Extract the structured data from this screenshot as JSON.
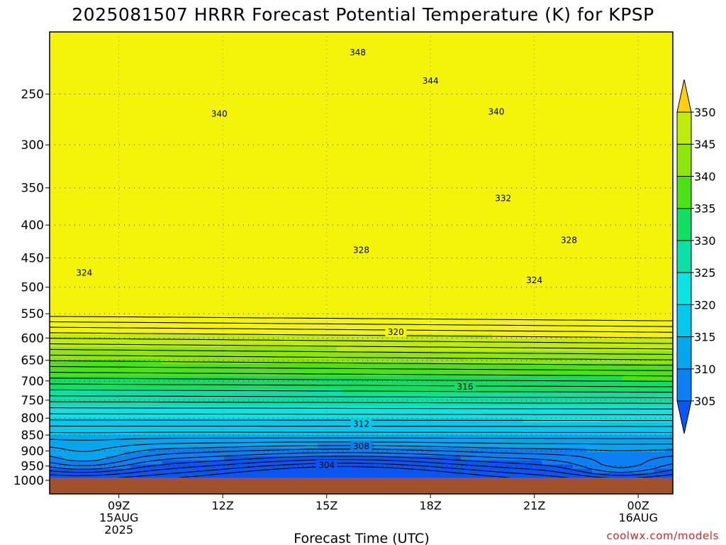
{
  "chart_data": {
    "type": "contour",
    "title": "2025081507 HRRR Forecast Potential Temperature (K) for KPSP",
    "xlabel": "Forecast Time (UTC)",
    "ylabel": "",
    "x_ticks": [
      {
        "hour": 9,
        "lines": [
          "09Z",
          "15AUG",
          "2025"
        ]
      },
      {
        "hour": 12,
        "lines": [
          "12Z"
        ]
      },
      {
        "hour": 15,
        "lines": [
          "15Z"
        ]
      },
      {
        "hour": 18,
        "lines": [
          "18Z"
        ]
      },
      {
        "hour": 21,
        "lines": [
          "21Z"
        ]
      },
      {
        "hour": 24,
        "lines": [
          "00Z",
          "16AUG"
        ]
      }
    ],
    "xlim_hours": [
      7,
      25
    ],
    "y_axis": "pressure (log scale, inverted)",
    "y_ticks": [
      250,
      300,
      350,
      400,
      450,
      500,
      550,
      600,
      650,
      700,
      750,
      800,
      850,
      900,
      950,
      1000
    ],
    "ylim": [
      1050,
      200
    ],
    "contour_interval": 2,
    "contour_labels": [
      {
        "value": "348",
        "hour": 15.9,
        "p": 215
      },
      {
        "value": "344",
        "hour": 18.0,
        "p": 238
      },
      {
        "value": "340",
        "hour": 11.9,
        "p": 268
      },
      {
        "value": "340",
        "hour": 19.9,
        "p": 266
      },
      {
        "value": "332",
        "hour": 20.1,
        "p": 363
      },
      {
        "value": "328",
        "hour": 16.0,
        "p": 437
      },
      {
        "value": "328",
        "hour": 22.0,
        "p": 422
      },
      {
        "value": "324",
        "hour": 8.0,
        "p": 474
      },
      {
        "value": "324",
        "hour": 21.0,
        "p": 487
      },
      {
        "value": "320",
        "hour": 17.0,
        "p": 587
      },
      {
        "value": "316",
        "hour": 19.0,
        "p": 714
      },
      {
        "value": "312",
        "hour": 16.0,
        "p": 816
      },
      {
        "value": "308",
        "hour": 16.0,
        "p": 884
      },
      {
        "value": "304",
        "hour": 15.0,
        "p": 946
      }
    ],
    "colorbar": {
      "levels": [
        305,
        310,
        315,
        320,
        325,
        330,
        335,
        340,
        345,
        350
      ],
      "labels": [
        "305",
        "310",
        "315",
        "320",
        "325",
        "330",
        "335",
        "340",
        "345",
        "350"
      ],
      "colors": [
        "#0a56f5",
        "#0c80f2",
        "#06a6ef",
        "#05c8ef",
        "#0ce3e3",
        "#0edfa6",
        "#14dd64",
        "#4ce218",
        "#8ee60c",
        "#c0ec0a",
        "#f4f40a",
        "#ffd00a"
      ],
      "extend": "both"
    },
    "ground_color": "#a0522d"
  },
  "watermark": "coolwx.com/models"
}
